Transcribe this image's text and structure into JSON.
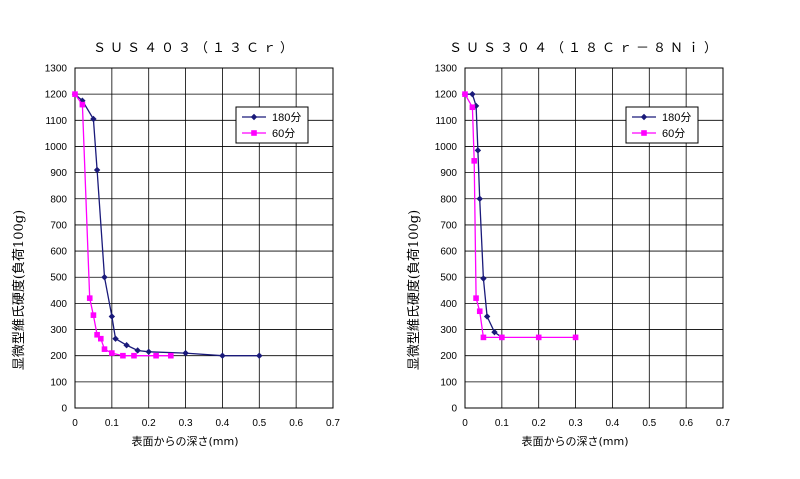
{
  "chart_data": [
    {
      "type": "line",
      "title": "ＳＵＳ４０３（１３Ｃｒ）",
      "xlabel": "表面からの深さ(mm)",
      "ylabel": "显微型維氏硬度(負荷100g)",
      "xlim": [
        0,
        0.7
      ],
      "ylim": [
        0,
        1300
      ],
      "x_ticks": [
        "0",
        "0.1",
        "0.2",
        "0.3",
        "0.4",
        "0.5",
        "0.6",
        "0.7"
      ],
      "y_ticks": [
        "0",
        "100",
        "200",
        "300",
        "400",
        "500",
        "600",
        "700",
        "800",
        "900",
        "1000",
        "1100",
        "1200",
        "1300"
      ],
      "grid": true,
      "legend_position": "top-right",
      "series": [
        {
          "name": "180分",
          "color": "#1a1a7a",
          "marker": "diamond",
          "points": [
            [
              0,
              1200
            ],
            [
              0.02,
              1175
            ],
            [
              0.05,
              1105
            ],
            [
              0.06,
              910
            ],
            [
              0.08,
              500
            ],
            [
              0.1,
              350
            ],
            [
              0.11,
              265
            ],
            [
              0.14,
              240
            ],
            [
              0.17,
              220
            ],
            [
              0.2,
              215
            ],
            [
              0.3,
              210
            ],
            [
              0.4,
              200
            ],
            [
              0.5,
              200
            ]
          ]
        },
        {
          "name": "60分",
          "color": "#ff00ff",
          "marker": "square",
          "points": [
            [
              0,
              1200
            ],
            [
              0.02,
              1160
            ],
            [
              0.04,
              420
            ],
            [
              0.05,
              355
            ],
            [
              0.06,
              280
            ],
            [
              0.07,
              265
            ],
            [
              0.08,
              225
            ],
            [
              0.1,
              210
            ],
            [
              0.13,
              200
            ],
            [
              0.16,
              200
            ],
            [
              0.22,
              200
            ],
            [
              0.26,
              200
            ]
          ]
        }
      ]
    },
    {
      "type": "line",
      "title": "ＳＵＳ３０４（１８Ｃｒ－８Ｎｉ）",
      "xlabel": "表面からの深さ(mm)",
      "ylabel": "显微型維氏硬度(負荷100g)",
      "xlim": [
        0,
        0.7
      ],
      "ylim": [
        0,
        1300
      ],
      "x_ticks": [
        "0",
        "0.1",
        "0.2",
        "0.3",
        "0.4",
        "0.5",
        "0.6",
        "0.7"
      ],
      "y_ticks": [
        "0",
        "100",
        "200",
        "300",
        "400",
        "500",
        "600",
        "700",
        "800",
        "900",
        "1000",
        "1100",
        "1200",
        "1300"
      ],
      "grid": true,
      "legend_position": "top-right",
      "series": [
        {
          "name": "180分",
          "color": "#1a1a7a",
          "marker": "diamond",
          "points": [
            [
              0,
              1200
            ],
            [
              0.02,
              1200
            ],
            [
              0.03,
              1155
            ],
            [
              0.035,
              985
            ],
            [
              0.04,
              800
            ],
            [
              0.05,
              495
            ],
            [
              0.06,
              350
            ],
            [
              0.08,
              290
            ],
            [
              0.1,
              270
            ]
          ]
        },
        {
          "name": "60分",
          "color": "#ff00ff",
          "marker": "square",
          "points": [
            [
              0,
              1200
            ],
            [
              0.02,
              1150
            ],
            [
              0.025,
              945
            ],
            [
              0.03,
              420
            ],
            [
              0.04,
              370
            ],
            [
              0.05,
              270
            ],
            [
              0.1,
              270
            ],
            [
              0.2,
              270
            ],
            [
              0.3,
              270
            ]
          ]
        }
      ]
    }
  ]
}
